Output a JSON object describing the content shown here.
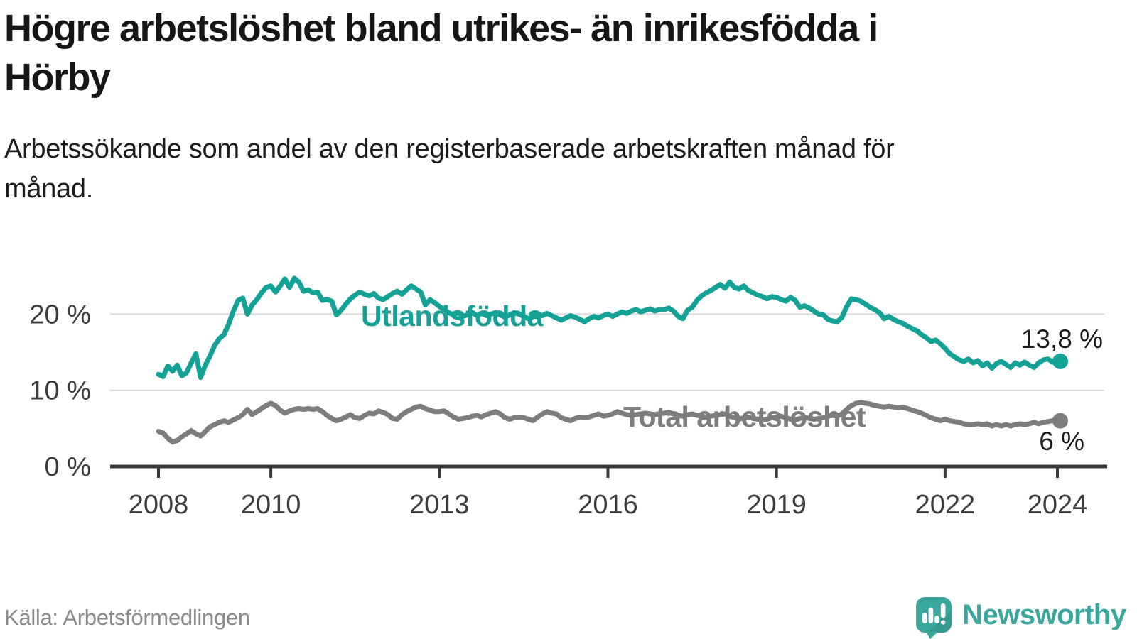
{
  "title": "Högre arbetslöshet bland utrikes- än inrikesfödda i Hörby",
  "subtitle": "Arbetssökande som andel av den registerbaserade arbetskraften månad för månad.",
  "source": "Källa: Arbetsförmedlingen",
  "brand": {
    "name": "Newsworthy",
    "color": "#3aa79d"
  },
  "colors": {
    "axis": "#3a3a3a",
    "grid": "#d9d9d9",
    "tick_label": "#3d3d3d",
    "value_label": "#1a1a1a",
    "teal": "#14a296",
    "gray": "#7d7d80"
  },
  "chart_data": {
    "type": "line",
    "title": "Högre arbetslöshet bland utrikes- än inrikesfödda i Hörby",
    "xlabel": "",
    "ylabel": "Arbetssökande som andel av den registerbaserade arbetskraften",
    "x_unit": "decimal year, monthly points",
    "x_range": [
      2008.0,
      2024.0
    ],
    "ylim": [
      0,
      26
    ],
    "grid": "horizontal",
    "legend_position": "inline-labels",
    "x_ticks": [
      "2008",
      "2010",
      "2013",
      "2016",
      "2019",
      "2022",
      "2024"
    ],
    "x_tick_years": [
      2008,
      2010,
      2013,
      2016,
      2019,
      2022,
      2024
    ],
    "y_ticks": [
      {
        "v": 0,
        "label": "0 %"
      },
      {
        "v": 10,
        "label": "10 %"
      },
      {
        "v": 20,
        "label": "20 %"
      }
    ],
    "series": [
      {
        "name": "Utlandsfödda",
        "color": "#14a296",
        "end_label": "13,8 %",
        "end_value": 13.8,
        "values": [
          12.1,
          11.8,
          13.2,
          12.5,
          13.3,
          11.9,
          12.3,
          13.6,
          14.8,
          11.7,
          13.3,
          14.5,
          15.9,
          16.8,
          17.3,
          18.7,
          20.4,
          21.8,
          22.1,
          20.0,
          21.2,
          21.9,
          22.8,
          23.5,
          23.7,
          22.9,
          23.7,
          24.6,
          23.5,
          24.7,
          24.2,
          23.0,
          23.2,
          22.8,
          22.9,
          21.8,
          21.9,
          21.7,
          19.9,
          20.5,
          21.3,
          22.0,
          22.5,
          22.9,
          22.6,
          22.4,
          22.7,
          22.1,
          21.9,
          22.3,
          22.7,
          23.0,
          22.6,
          23.2,
          23.7,
          23.3,
          22.9,
          21.2,
          21.9,
          21.5,
          21.0,
          20.6,
          20.2,
          19.9,
          20.2,
          19.7,
          19.9,
          20.2,
          19.8,
          20.1,
          19.8,
          20.0,
          20.2,
          19.9,
          19.6,
          19.9,
          20.2,
          20.0,
          19.7,
          19.4,
          19.7,
          20.0,
          19.8,
          20.1,
          19.8,
          19.5,
          19.2,
          19.5,
          19.8,
          19.6,
          19.3,
          19.0,
          19.4,
          19.7,
          19.5,
          19.8,
          20.0,
          19.7,
          20.0,
          20.3,
          20.1,
          20.4,
          20.6,
          20.3,
          20.5,
          20.7,
          20.4,
          20.6,
          20.6,
          20.8,
          20.4,
          19.7,
          19.4,
          20.5,
          20.9,
          21.8,
          22.4,
          22.8,
          23.1,
          23.5,
          23.9,
          23.4,
          24.2,
          23.5,
          23.3,
          23.7,
          23.1,
          22.8,
          22.5,
          22.3,
          22.0,
          22.3,
          22.2,
          21.9,
          21.7,
          22.2,
          21.8,
          20.9,
          21.1,
          20.8,
          20.4,
          20.0,
          19.9,
          19.3,
          19.1,
          19.0,
          19.6,
          21.0,
          22.0,
          21.9,
          21.7,
          21.3,
          20.9,
          20.6,
          20.2,
          19.4,
          19.7,
          19.3,
          19.0,
          18.8,
          18.4,
          18.1,
          17.8,
          17.3,
          16.9,
          16.4,
          16.6,
          16.1,
          15.5,
          14.8,
          14.4,
          14.0,
          13.8,
          14.1,
          13.6,
          13.9,
          13.2,
          13.6,
          12.9,
          13.5,
          13.8,
          13.4,
          13.0,
          13.6,
          13.3,
          13.7,
          13.3,
          13.0,
          13.6,
          14.0,
          14.1,
          13.7,
          13.8
        ]
      },
      {
        "name": "Total arbetslöshet",
        "color": "#7d7d80",
        "end_label": "6 %",
        "end_value": 6.0,
        "values": [
          4.6,
          4.4,
          3.7,
          3.2,
          3.4,
          3.9,
          4.3,
          4.7,
          4.3,
          4.0,
          4.6,
          5.2,
          5.5,
          5.8,
          6.0,
          5.8,
          6.1,
          6.4,
          6.8,
          7.5,
          6.8,
          7.2,
          7.6,
          8.0,
          8.3,
          8.0,
          7.4,
          7.0,
          7.3,
          7.5,
          7.6,
          7.5,
          7.6,
          7.5,
          7.6,
          7.2,
          6.7,
          6.3,
          6.0,
          6.2,
          6.5,
          6.8,
          6.4,
          6.3,
          6.7,
          7.0,
          6.9,
          7.3,
          7.1,
          6.8,
          6.3,
          6.2,
          6.8,
          7.2,
          7.5,
          7.8,
          7.9,
          7.6,
          7.4,
          7.2,
          7.2,
          7.3,
          6.9,
          6.5,
          6.2,
          6.3,
          6.4,
          6.6,
          6.7,
          6.5,
          6.8,
          7.0,
          7.2,
          6.9,
          6.4,
          6.2,
          6.4,
          6.5,
          6.4,
          6.2,
          6.0,
          6.5,
          6.9,
          7.2,
          7.0,
          6.9,
          6.4,
          6.2,
          6.0,
          6.3,
          6.5,
          6.4,
          6.5,
          6.7,
          6.9,
          6.6,
          6.7,
          6.9,
          7.2,
          7.0,
          6.8,
          6.7,
          6.8,
          6.9,
          7.0,
          6.9,
          6.8,
          6.9,
          7.0,
          7.1,
          6.9,
          6.7,
          6.6,
          6.8,
          6.9,
          6.7,
          6.6,
          6.5,
          6.6,
          6.7,
          6.8,
          6.9,
          6.6,
          6.4,
          6.2,
          6.4,
          6.5,
          6.3,
          6.2,
          6.1,
          6.2,
          6.4,
          6.5,
          6.6,
          6.4,
          6.2,
          6.1,
          6.3,
          6.5,
          6.3,
          6.2,
          6.3,
          6.4,
          6.6,
          6.7,
          6.6,
          6.9,
          7.5,
          8.0,
          8.3,
          8.4,
          8.3,
          8.2,
          8.0,
          7.9,
          7.8,
          7.9,
          7.8,
          7.7,
          7.8,
          7.6,
          7.4,
          7.2,
          7.0,
          6.7,
          6.4,
          6.2,
          6.0,
          6.2,
          6.0,
          5.9,
          5.8,
          5.6,
          5.5,
          5.5,
          5.6,
          5.5,
          5.6,
          5.3,
          5.5,
          5.3,
          5.5,
          5.3,
          5.5,
          5.6,
          5.5,
          5.6,
          5.8,
          5.6,
          5.8,
          5.9,
          6.0,
          6.0
        ]
      }
    ]
  }
}
